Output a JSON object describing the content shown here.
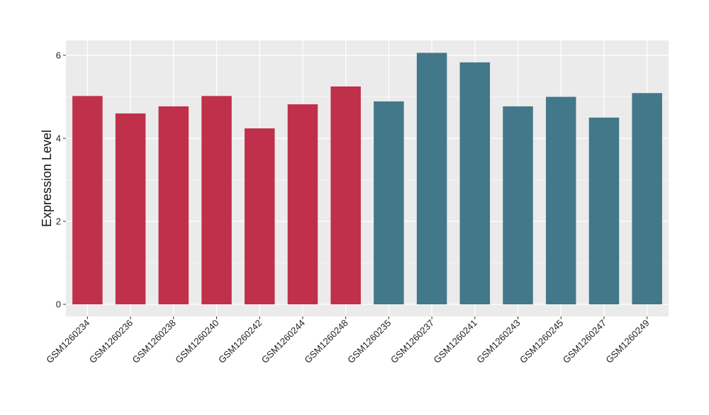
{
  "chart_data": {
    "type": "bar",
    "title": "",
    "xlabel": "",
    "ylabel": "Expression Level",
    "ylim": [
      0,
      6.3
    ],
    "yticks": [
      0,
      2,
      4,
      6
    ],
    "grid": true,
    "categories": [
      "GSM1260234",
      "GSM1260236",
      "GSM1260238",
      "GSM1260240",
      "GSM1260242",
      "GSM1260244",
      "GSM1260248",
      "GSM1260235",
      "GSM1260237",
      "GSM1260241",
      "GSM1260243",
      "GSM1260245",
      "GSM1260247",
      "GSM1260249"
    ],
    "values": [
      5.02,
      4.6,
      4.77,
      5.02,
      4.24,
      4.82,
      5.25,
      4.89,
      6.06,
      5.83,
      4.77,
      5.0,
      4.5,
      5.09
    ],
    "group_colors": [
      "#c0304a",
      "#c0304a",
      "#c0304a",
      "#c0304a",
      "#c0304a",
      "#c0304a",
      "#c0304a",
      "#42788a",
      "#42788a",
      "#42788a",
      "#42788a",
      "#42788a",
      "#42788a",
      "#42788a"
    ],
    "panel_background": "#ebebeb",
    "grid_color": "#ffffff"
  }
}
